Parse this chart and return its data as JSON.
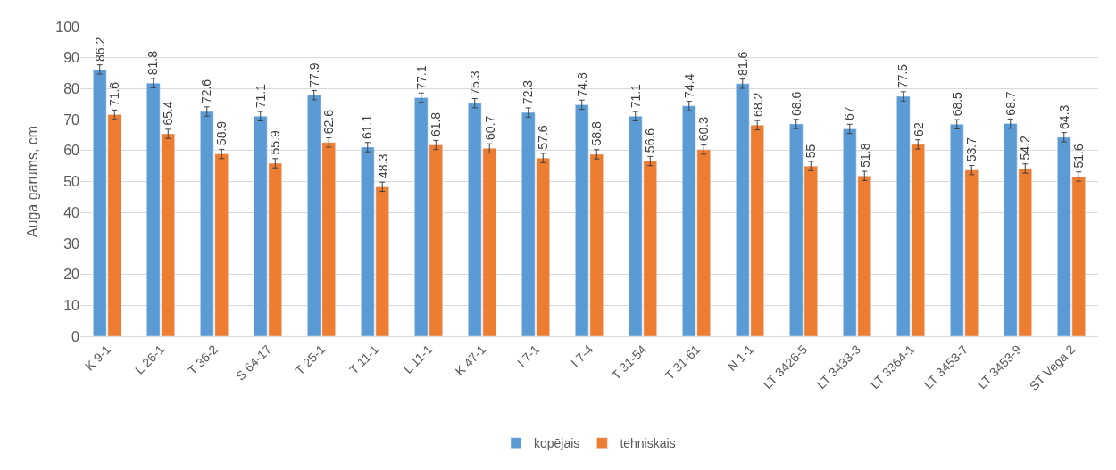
{
  "chart_data": {
    "type": "bar",
    "ylabel": "Auga garums, cm",
    "categories": [
      "K 9-1",
      "L 26-1",
      "T 36-2",
      "S 64-17",
      "T 25-1",
      "T 11-1",
      "L 11-1",
      "K 47-1",
      "I 7-1",
      "I 7-4",
      "T 31-54",
      "T 31-61",
      "N 1-1",
      "LT 3426-5",
      "LT 3433-3",
      "LT 3364-1",
      "LT 3453-7",
      "LT 3453-9",
      "ST Vega 2"
    ],
    "series": [
      {
        "name": "kopējais",
        "color": "#5b9bd5",
        "values": [
          86.2,
          81.8,
          72.6,
          71.1,
          77.9,
          61.1,
          77.1,
          75.3,
          72.3,
          74.8,
          71.1,
          74.4,
          81.6,
          68.6,
          67,
          77.5,
          68.5,
          68.7,
          64.3
        ],
        "errors": [
          1.5,
          1.5,
          1.5,
          1.5,
          1.5,
          1.5,
          1.5,
          1.5,
          1.5,
          1.5,
          1.5,
          1.5,
          1.5,
          1.5,
          1.5,
          1.5,
          1.5,
          1.5,
          1.5
        ]
      },
      {
        "name": "tehniskais",
        "color": "#ed7d31",
        "values": [
          71.6,
          65.4,
          58.9,
          55.9,
          62.6,
          48.3,
          61.8,
          60.7,
          57.6,
          58.8,
          56.6,
          60.3,
          68.2,
          55,
          51.8,
          62,
          53.7,
          54.2,
          51.6
        ],
        "errors": [
          1.5,
          1.5,
          1.5,
          1.5,
          1.5,
          1.5,
          1.5,
          1.5,
          1.5,
          1.5,
          1.5,
          1.5,
          1.5,
          1.5,
          1.5,
          1.5,
          1.5,
          1.5,
          1.5
        ]
      }
    ],
    "ylim": [
      0,
      100
    ],
    "yticks": [
      0,
      10,
      20,
      30,
      40,
      50,
      60,
      70,
      80,
      90,
      100
    ],
    "grid": "y",
    "legend": "bottom",
    "data_labels": true
  }
}
